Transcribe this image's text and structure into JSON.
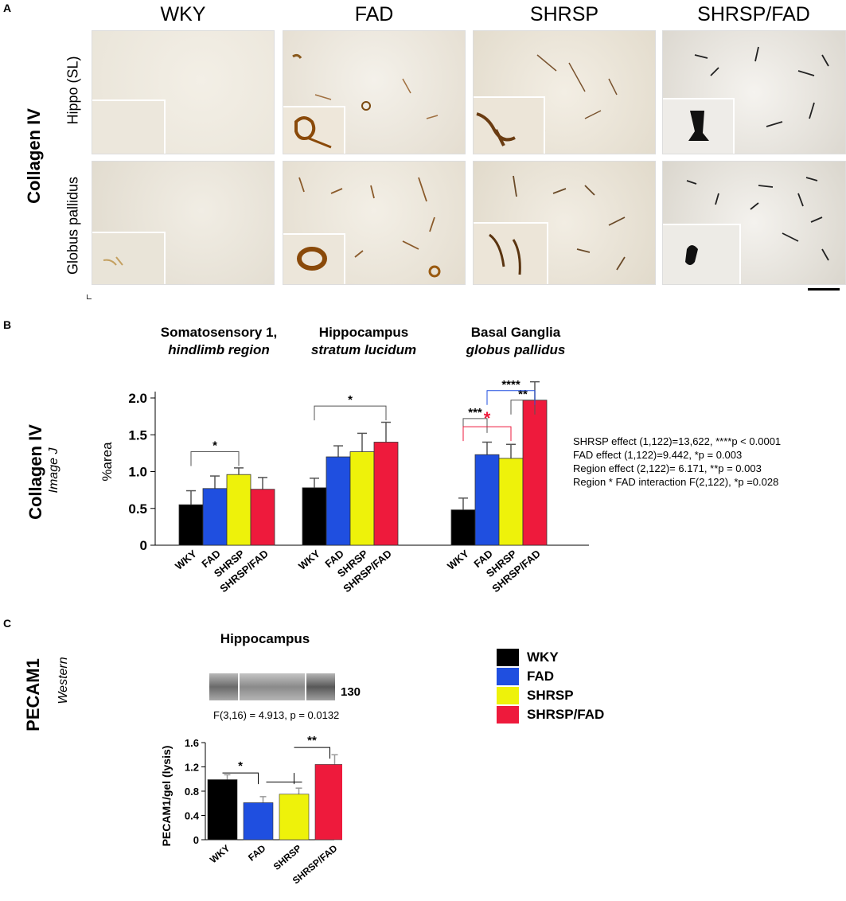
{
  "colors": {
    "WKY": "#000000",
    "FAD": "#1f4fe0",
    "SHRSP": "#eef20a",
    "SHRSP/FAD": "#ee1a3c"
  },
  "panelA": {
    "letter": "A",
    "columns": [
      "WKY",
      "FAD",
      "SHRSP",
      "SHRSP/FAD"
    ],
    "stain": "Collagen IV",
    "rows": [
      "Hippo (SL)",
      "Globus pallidus"
    ]
  },
  "panelB": {
    "letter": "B",
    "ylabel_main": "Collagen IV",
    "ylabel_sub": "Image J",
    "groups": [
      {
        "title": "Somatosensory 1,",
        "subtitle": "hindlimb region"
      },
      {
        "title": "Hippocampus",
        "subtitle": "stratum lucidum"
      },
      {
        "title": "Basal Ganglia",
        "subtitle": "globus pallidus"
      }
    ],
    "stats": [
      "SHRSP effect (1,122)=13,622, ****p < 0.0001",
      "FAD effect (1,122)=9.442, *p = 0.003",
      "Region effect (2,122)= 6.171, **p = 0.003",
      "Region * FAD interaction F(2,122), *p =0.028"
    ]
  },
  "panelC": {
    "letter": "C",
    "ylabel_main": "PECAM1",
    "ylabel_sub": "Western",
    "title": "Hippocampus",
    "band_label": "130",
    "anova": "F(3,16) = 4.913, p = 0.0132",
    "legend": [
      "WKY",
      "FAD",
      "SHRSP",
      "SHRSP/FAD"
    ]
  },
  "chart_data": [
    {
      "type": "bar",
      "ylabel": "%area",
      "ylim": [
        0,
        2.0
      ],
      "yticks": [
        "0",
        "0.5",
        "1.0",
        "1.5",
        "2.0"
      ],
      "categories": [
        "WKY",
        "FAD",
        "SHRSP",
        "SHRSP/FAD"
      ],
      "groups": [
        "Somatosensory 1, hindlimb region",
        "Hippocampus stratum lucidum",
        "Basal Ganglia globus pallidus"
      ],
      "series": [
        {
          "group": "Somatosensory 1, hindlimb region",
          "values": [
            0.55,
            0.77,
            0.96,
            0.76
          ],
          "errors": [
            0.19,
            0.17,
            0.09,
            0.16
          ]
        },
        {
          "group": "Hippocampus stratum lucidum",
          "values": [
            0.78,
            1.2,
            1.27,
            1.4
          ],
          "errors": [
            0.13,
            0.15,
            0.25,
            0.27
          ]
        },
        {
          "group": "Basal Ganglia globus pallidus",
          "values": [
            0.48,
            1.23,
            1.18,
            1.97
          ],
          "errors": [
            0.16,
            0.17,
            0.19,
            0.25
          ]
        }
      ],
      "significance": [
        {
          "group": 0,
          "from": "WKY",
          "to": "SHRSP",
          "label": "*"
        },
        {
          "group": 1,
          "from": "WKY",
          "to": "SHRSP/FAD",
          "label": "*"
        },
        {
          "group": 2,
          "from": "WKY",
          "to": "FAD",
          "label": "***"
        },
        {
          "group": 2,
          "from": "WKY",
          "to": "SHRSP",
          "label": "*",
          "color": "#ee1a3c"
        },
        {
          "group": 2,
          "from": "SHRSP",
          "to": "SHRSP/FAD",
          "label": "**"
        },
        {
          "group": 2,
          "from": "FAD",
          "to": "SHRSP/FAD",
          "label": "****",
          "color": "#1f4fe0"
        }
      ]
    },
    {
      "type": "bar",
      "ylabel": "PECAM1/gel (lysis)",
      "ylim": [
        0,
        1.6
      ],
      "yticks": [
        "0",
        "0.4",
        "0.8",
        "1.2",
        "1.6"
      ],
      "categories": [
        "WKY",
        "FAD",
        "SHRSP",
        "SHRSP/FAD"
      ],
      "values": [
        0.99,
        0.61,
        0.75,
        1.24
      ],
      "errors": [
        0.08,
        0.1,
        0.1,
        0.16
      ],
      "significance": [
        {
          "from": "WKY",
          "to": "FAD",
          "label": "*"
        },
        {
          "from": "SHRSP",
          "to": "SHRSP/FAD",
          "label": "**"
        }
      ]
    }
  ]
}
